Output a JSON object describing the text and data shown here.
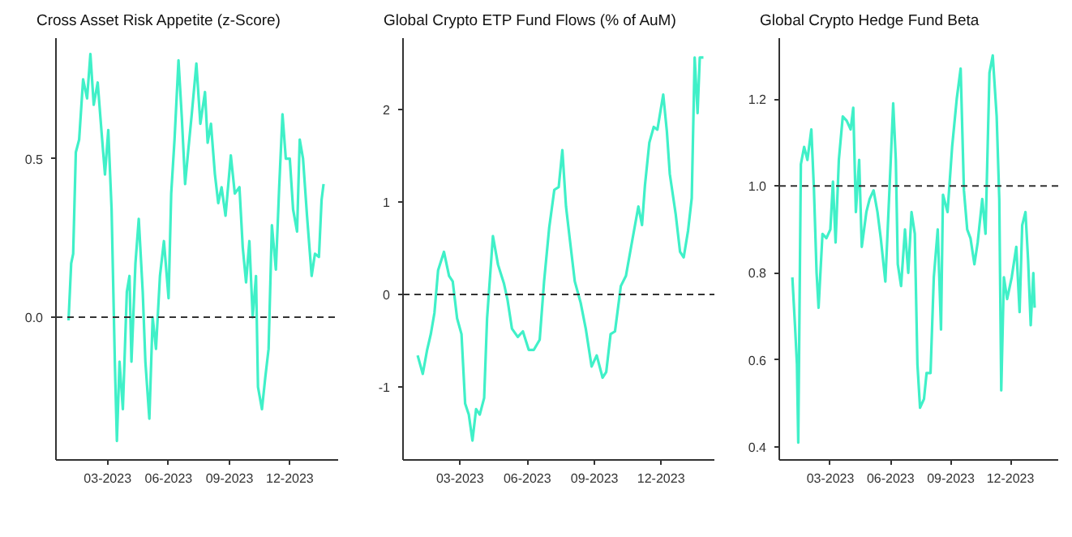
{
  "chart_data": [
    {
      "type": "line",
      "title": "Cross Asset Risk Appetite (z-Score)",
      "grid": false,
      "xlim": [
        "2022-12-13",
        "2024-02-12"
      ],
      "ylim": [
        -0.45,
        0.88
      ],
      "yticks": [
        {
          "value": 0,
          "label": "0.0"
        },
        0.5
      ],
      "xticks": [
        {
          "value": "2023-03-01",
          "label": "03-2023"
        },
        {
          "value": "2023-06-01",
          "label": "06-2023"
        },
        {
          "value": "2023-09-01",
          "label": "09-2023"
        },
        {
          "value": "2023-12-01",
          "label": "12-2023"
        }
      ],
      "ref_lines": [
        {
          "axis": "y",
          "value": 0,
          "line_style": "dashed",
          "color": "#333333"
        }
      ],
      "x": [
        "2023-01-01",
        "2023-01-05",
        "2023-01-08",
        "2023-01-12",
        "2023-01-17",
        "2023-01-23",
        "2023-01-29",
        "2023-02-03",
        "2023-02-08",
        "2023-02-14",
        "2023-02-20",
        "2023-02-25",
        "2023-03-02",
        "2023-03-07",
        "2023-03-12",
        "2023-03-15",
        "2023-03-19",
        "2023-03-24",
        "2023-03-30",
        "2023-04-03",
        "2023-04-06",
        "2023-04-12",
        "2023-04-17",
        "2023-04-23",
        "2023-04-27",
        "2023-05-03",
        "2023-05-08",
        "2023-05-13",
        "2023-05-19",
        "2023-05-25",
        "2023-06-01",
        "2023-06-05",
        "2023-06-10",
        "2023-06-16",
        "2023-06-21",
        "2023-06-26",
        "2023-06-30",
        "2023-07-06",
        "2023-07-13",
        "2023-07-19",
        "2023-07-26",
        "2023-07-30",
        "2023-08-04",
        "2023-08-10",
        "2023-08-15",
        "2023-08-20",
        "2023-08-26",
        "2023-09-03",
        "2023-09-09",
        "2023-09-16",
        "2023-09-21",
        "2023-09-26",
        "2023-10-01",
        "2023-10-06",
        "2023-10-11",
        "2023-10-14",
        "2023-10-20",
        "2023-10-25",
        "2023-10-30",
        "2023-11-04",
        "2023-11-10",
        "2023-11-15",
        "2023-11-20",
        "2023-11-25",
        "2023-12-01",
        "2023-12-06",
        "2023-12-12",
        "2023-12-16",
        "2023-12-21",
        "2023-12-27",
        "2024-01-03",
        "2024-01-08",
        "2024-01-14",
        "2024-01-18",
        "2024-01-21"
      ],
      "series": [
        {
          "color": "#40f0c8",
          "values": [
            -0.01,
            0.17,
            0.2,
            0.52,
            0.56,
            0.75,
            0.69,
            0.83,
            0.67,
            0.74,
            0.58,
            0.45,
            0.59,
            0.34,
            -0.15,
            -0.39,
            -0.14,
            -0.29,
            0.08,
            0.13,
            -0.14,
            0.17,
            0.31,
            0.08,
            -0.14,
            -0.32,
            0.0,
            -0.1,
            0.13,
            0.24,
            0.06,
            0.39,
            0.56,
            0.81,
            0.63,
            0.42,
            0.51,
            0.64,
            0.8,
            0.61,
            0.71,
            0.55,
            0.61,
            0.45,
            0.36,
            0.41,
            0.32,
            0.51,
            0.39,
            0.41,
            0.22,
            0.11,
            0.24,
            0.0,
            0.13,
            -0.22,
            -0.29,
            -0.19,
            -0.1,
            0.29,
            0.15,
            0.41,
            0.64,
            0.5,
            0.5,
            0.34,
            0.27,
            0.56,
            0.5,
            0.32,
            0.13,
            0.2,
            0.19,
            0.37,
            0.42
          ]
        }
      ]
    },
    {
      "type": "line",
      "title": "Global Crypto ETP Fund Flows (% of AuM)",
      "grid": false,
      "xlim": [
        "2022-12-13",
        "2024-02-12"
      ],
      "ylim": [
        -1.79,
        2.77
      ],
      "yticks": [
        -1,
        0,
        1,
        2
      ],
      "xticks": [
        {
          "value": "2023-03-01",
          "label": "03-2023"
        },
        {
          "value": "2023-06-01",
          "label": "06-2023"
        },
        {
          "value": "2023-09-01",
          "label": "09-2023"
        },
        {
          "value": "2023-12-01",
          "label": "12-2023"
        }
      ],
      "ref_lines": [
        {
          "axis": "y",
          "value": 0,
          "line_style": "dashed",
          "color": "#333333"
        }
      ],
      "x": [
        "2023-01-02",
        "2023-01-09",
        "2023-01-15",
        "2023-01-20",
        "2023-01-25",
        "2023-01-30",
        "2023-02-07",
        "2023-02-14",
        "2023-02-19",
        "2023-02-25",
        "2023-03-03",
        "2023-03-08",
        "2023-03-13",
        "2023-03-18",
        "2023-03-23",
        "2023-03-28",
        "2023-04-03",
        "2023-04-07",
        "2023-04-15",
        "2023-04-22",
        "2023-04-30",
        "2023-05-05",
        "2023-05-11",
        "2023-05-19",
        "2023-05-26",
        "2023-06-03",
        "2023-06-10",
        "2023-06-18",
        "2023-06-24",
        "2023-07-01",
        "2023-07-08",
        "2023-07-14",
        "2023-07-19",
        "2023-07-24",
        "2023-07-29",
        "2023-08-05",
        "2023-08-13",
        "2023-08-20",
        "2023-08-28",
        "2023-09-04",
        "2023-09-12",
        "2023-09-17",
        "2023-09-23",
        "2023-09-29",
        "2023-10-07",
        "2023-10-14",
        "2023-10-23",
        "2023-10-31",
        "2023-11-05",
        "2023-11-09",
        "2023-11-15",
        "2023-11-21",
        "2023-11-26",
        "2023-12-04",
        "2023-12-09",
        "2023-12-13",
        "2023-12-21",
        "2023-12-27",
        "2024-01-01",
        "2024-01-07",
        "2024-01-12",
        "2024-01-16",
        "2024-01-20",
        "2024-01-23",
        "2024-01-28"
      ],
      "series": [
        {
          "color": "#40f0c8",
          "values": [
            -0.66,
            -0.86,
            -0.6,
            -0.43,
            -0.2,
            0.26,
            0.46,
            0.2,
            0.14,
            -0.26,
            -0.43,
            -1.18,
            -1.3,
            -1.58,
            -1.24,
            -1.3,
            -1.12,
            -0.26,
            0.63,
            0.32,
            0.12,
            -0.06,
            -0.37,
            -0.46,
            -0.4,
            -0.6,
            -0.6,
            -0.49,
            0.14,
            0.72,
            1.13,
            1.16,
            1.56,
            0.95,
            0.61,
            0.14,
            -0.09,
            -0.37,
            -0.78,
            -0.66,
            -0.9,
            -0.84,
            -0.43,
            -0.4,
            0.09,
            0.2,
            0.6,
            0.95,
            0.75,
            1.18,
            1.64,
            1.81,
            1.78,
            2.16,
            1.76,
            1.3,
            0.87,
            0.46,
            0.4,
            0.69,
            1.04,
            2.56,
            1.96,
            2.56,
            2.56
          ]
        }
      ]
    },
    {
      "type": "line",
      "title": "Global Crypto Hedge Fund Beta",
      "grid": false,
      "xlim": [
        "2022-12-13",
        "2024-02-12"
      ],
      "ylim": [
        0.37,
        1.34
      ],
      "yticks": [
        0.4,
        0.6,
        0.8,
        {
          "value": 1,
          "label": "1.0"
        },
        1.2
      ],
      "xticks": [
        {
          "value": "2023-03-01",
          "label": "03-2023"
        },
        {
          "value": "2023-06-01",
          "label": "06-2023"
        },
        {
          "value": "2023-09-01",
          "label": "09-2023"
        },
        {
          "value": "2023-12-01",
          "label": "12-2023"
        }
      ],
      "ref_lines": [
        {
          "axis": "y",
          "value": 1,
          "line_style": "dashed",
          "color": "#333333"
        }
      ],
      "x": [
        "2023-01-02",
        "2023-01-06",
        "2023-01-09",
        "2023-01-11",
        "2023-01-15",
        "2023-01-20",
        "2023-01-25",
        "2023-01-31",
        "2023-02-04",
        "2023-02-08",
        "2023-02-11",
        "2023-02-17",
        "2023-02-23",
        "2023-03-01",
        "2023-03-05",
        "2023-03-09",
        "2023-03-14",
        "2023-03-20",
        "2023-03-26",
        "2023-04-01",
        "2023-04-05",
        "2023-04-09",
        "2023-04-14",
        "2023-04-18",
        "2023-04-25",
        "2023-04-30",
        "2023-05-06",
        "2023-05-12",
        "2023-05-17",
        "2023-05-24",
        "2023-05-27",
        "2023-06-01",
        "2023-06-05",
        "2023-06-09",
        "2023-06-12",
        "2023-06-17",
        "2023-06-23",
        "2023-06-28",
        "2023-07-03",
        "2023-07-08",
        "2023-07-12",
        "2023-07-16",
        "2023-07-22",
        "2023-07-26",
        "2023-08-01",
        "2023-08-06",
        "2023-08-12",
        "2023-08-17",
        "2023-08-20",
        "2023-08-27",
        "2023-09-03",
        "2023-09-10",
        "2023-09-16",
        "2023-09-21",
        "2023-09-26",
        "2023-10-01",
        "2023-10-07",
        "2023-10-12",
        "2023-10-19",
        "2023-10-24",
        "2023-10-30",
        "2023-11-04",
        "2023-11-10",
        "2023-11-14",
        "2023-11-17",
        "2023-11-21",
        "2023-11-26",
        "2023-12-03",
        "2023-12-10",
        "2023-12-15",
        "2023-12-19",
        "2023-12-24",
        "2023-12-28",
        "2024-01-01",
        "2024-01-05",
        "2024-01-07"
      ],
      "series": [
        {
          "color": "#40f0c8",
          "values": [
            0.79,
            0.68,
            0.59,
            0.41,
            1.05,
            1.09,
            1.06,
            1.13,
            0.99,
            0.8,
            0.72,
            0.89,
            0.88,
            0.9,
            1.01,
            0.87,
            1.06,
            1.16,
            1.15,
            1.13,
            1.18,
            0.94,
            1.06,
            0.86,
            0.94,
            0.97,
            0.99,
            0.94,
            0.88,
            0.78,
            0.88,
            1.05,
            1.19,
            1.06,
            0.82,
            0.77,
            0.9,
            0.8,
            0.94,
            0.89,
            0.59,
            0.49,
            0.51,
            0.57,
            0.57,
            0.79,
            0.9,
            0.67,
            0.98,
            0.94,
            1.09,
            1.2,
            1.27,
            0.99,
            0.9,
            0.88,
            0.82,
            0.87,
            0.97,
            0.89,
            1.26,
            1.3,
            1.16,
            0.97,
            0.53,
            0.79,
            0.74,
            0.79,
            0.86,
            0.71,
            0.91,
            0.94,
            0.83,
            0.68,
            0.8,
            0.72
          ]
        }
      ]
    }
  ]
}
